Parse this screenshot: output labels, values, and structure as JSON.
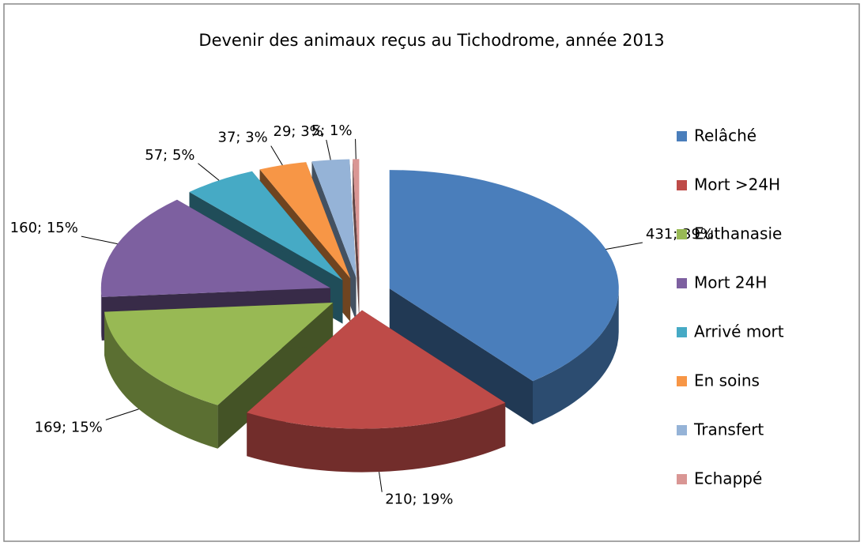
{
  "chart_data": {
    "type": "pie",
    "title": "Devenir des animaux reçus au Tichodrome, année 2013",
    "categories": [
      "Relâché",
      "Mort >24H",
      "Euthanasie",
      "Mort 24H",
      "Arrivé mort",
      "En soins",
      "Transfert",
      "Echappé"
    ],
    "values": [
      431,
      210,
      169,
      160,
      57,
      37,
      29,
      5
    ],
    "value_labels": [
      "431; 39%",
      "210; 19%",
      "169; 15%",
      "160; 15%",
      "57; 5%",
      "37; 3%",
      "29; 3%",
      "5; 1%"
    ],
    "colors": [
      "#4a7ebb",
      "#be4b48",
      "#98b954",
      "#7d60a0",
      "#46aac5",
      "#f79646",
      "#95b3d7",
      "#d99694"
    ],
    "legend": "right"
  }
}
